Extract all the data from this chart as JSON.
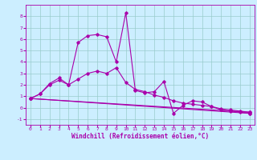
{
  "xlabel": "Windchill (Refroidissement éolien,°C)",
  "bg_color": "#cceeff",
  "line_color": "#aa00aa",
  "grid_color": "#99cccc",
  "xlim": [
    -0.5,
    23.5
  ],
  "ylim": [
    -1.5,
    9.0
  ],
  "yticks": [
    -1,
    0,
    1,
    2,
    3,
    4,
    5,
    6,
    7,
    8
  ],
  "xticks": [
    0,
    1,
    2,
    3,
    4,
    5,
    6,
    7,
    8,
    9,
    10,
    11,
    12,
    13,
    14,
    15,
    16,
    17,
    18,
    19,
    20,
    21,
    22,
    23
  ],
  "series1_x": [
    0,
    1,
    2,
    3,
    4,
    5,
    6,
    7,
    8,
    9,
    10,
    11,
    12,
    13,
    14,
    15,
    16,
    17,
    18,
    19,
    20,
    21,
    22,
    23
  ],
  "series1_y": [
    0.8,
    1.2,
    2.1,
    2.6,
    2.0,
    5.7,
    6.3,
    6.4,
    6.2,
    4.0,
    8.3,
    1.5,
    1.3,
    1.4,
    2.3,
    -0.5,
    0.2,
    0.6,
    0.5,
    0.1,
    -0.2,
    -0.3,
    -0.4,
    -0.5
  ],
  "series2_x": [
    0,
    1,
    2,
    3,
    4,
    5,
    6,
    7,
    8,
    9,
    10,
    11,
    12,
    13,
    14,
    15,
    16,
    17,
    18,
    19,
    20,
    21,
    22,
    23
  ],
  "series2_y": [
    0.8,
    1.2,
    2.0,
    2.4,
    2.0,
    2.5,
    3.0,
    3.2,
    3.0,
    3.5,
    2.2,
    1.6,
    1.4,
    1.1,
    0.9,
    0.6,
    0.4,
    0.3,
    0.2,
    0.1,
    -0.1,
    -0.2,
    -0.3,
    -0.4
  ],
  "series3_x": [
    0,
    23
  ],
  "series3_y": [
    0.8,
    -0.5
  ],
  "series4_x": [
    0,
    23
  ],
  "series4_y": [
    0.8,
    -0.4
  ],
  "marker": "D",
  "markersize": 1.8,
  "linewidth": 0.8,
  "tick_fontsize": 4.5,
  "label_fontsize": 5.5
}
